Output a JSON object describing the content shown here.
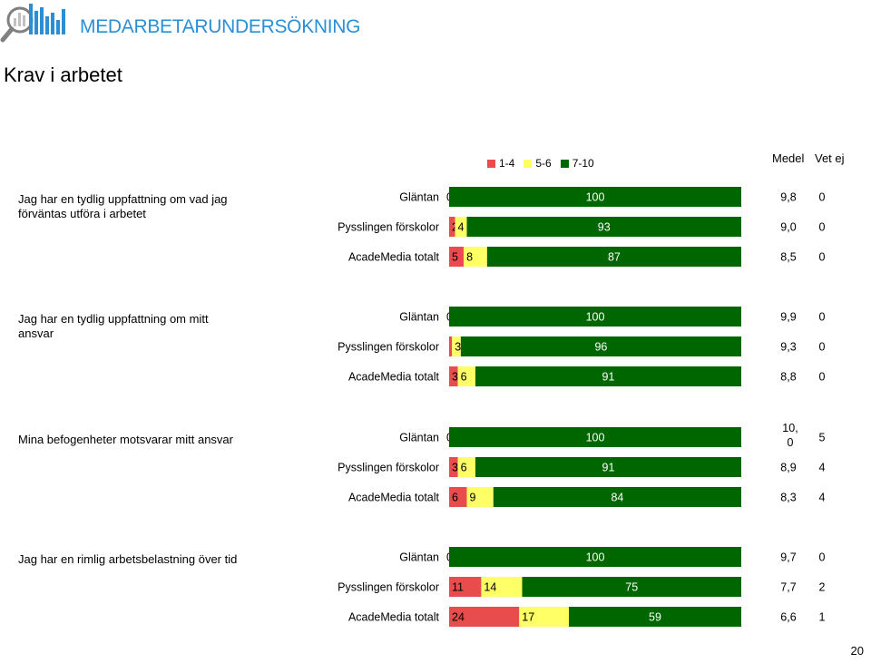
{
  "header": {
    "brand": "MEDARBETARUNDERSÖKNING",
    "title": "Krav i arbetet",
    "page_number": "20"
  },
  "colors": {
    "low": "#e84c4c",
    "mid": "#ffff66",
    "high": "#006600",
    "brand": "#2b8fd6",
    "logo_gray": "#808080"
  },
  "chart_data": {
    "type": "bar",
    "stacked": true,
    "orientation": "horizontal",
    "legend": {
      "position": "top-right",
      "items": [
        "1-4",
        "5-6",
        "7-10"
      ]
    },
    "columns": {
      "mean": "Medel",
      "dont_know": "Vet ej"
    },
    "groups": [
      {
        "question": "Jag har en tydlig uppfattning om vad jag förväntas utföra i arbetet",
        "rows": [
          {
            "label": "Gläntan",
            "values": [
              0,
              0,
              100
            ],
            "labels": [
              "0",
              "",
              "100"
            ],
            "mean": "9,8",
            "dont_know": "0"
          },
          {
            "label": "Pysslingen förskolor",
            "values": [
              2,
              4,
              93
            ],
            "labels": [
              "2",
              "4",
              "93"
            ],
            "mean": "9,0",
            "dont_know": "0"
          },
          {
            "label": "AcadeMedia totalt",
            "values": [
              5,
              8,
              87
            ],
            "labels": [
              "5",
              "8",
              "87"
            ],
            "mean": "8,5",
            "dont_know": "0"
          }
        ]
      },
      {
        "question": "Jag har en tydlig uppfattning om mitt ansvar",
        "rows": [
          {
            "label": "Gläntan",
            "values": [
              0,
              0,
              100
            ],
            "labels": [
              "0",
              "",
              "100"
            ],
            "mean": "9,9",
            "dont_know": "0"
          },
          {
            "label": "Pysslingen förskolor",
            "values": [
              1,
              3,
              96
            ],
            "labels": [
              "1",
              "3",
              "96"
            ],
            "mean": "9,3",
            "dont_know": "0"
          },
          {
            "label": "AcadeMedia totalt",
            "values": [
              3,
              6,
              91
            ],
            "labels": [
              "3",
              "6",
              "91"
            ],
            "mean": "8,8",
            "dont_know": "0"
          }
        ]
      },
      {
        "question": "Mina befogenheter motsvarar mitt ansvar",
        "rows": [
          {
            "label": "Gläntan",
            "values": [
              0,
              0,
              100
            ],
            "labels": [
              "0",
              "",
              "100"
            ],
            "mean": "10,0",
            "dont_know": "5"
          },
          {
            "label": "Pysslingen förskolor",
            "values": [
              3,
              6,
              91
            ],
            "labels": [
              "3",
              "6",
              "91"
            ],
            "mean": "8,9",
            "dont_know": "4"
          },
          {
            "label": "AcadeMedia totalt",
            "values": [
              6,
              9,
              84
            ],
            "labels": [
              "6",
              "9",
              "84"
            ],
            "mean": "8,3",
            "dont_know": "4"
          }
        ]
      },
      {
        "question": "Jag har en rimlig arbetsbelastning över tid",
        "rows": [
          {
            "label": "Gläntan",
            "values": [
              0,
              0,
              100
            ],
            "labels": [
              "0",
              "",
              "100"
            ],
            "mean": "9,7",
            "dont_know": "0"
          },
          {
            "label": "Pysslingen förskolor",
            "values": [
              11,
              14,
              75
            ],
            "labels": [
              "11",
              "14",
              "75"
            ],
            "mean": "7,7",
            "dont_know": "2"
          },
          {
            "label": "AcadeMedia totalt",
            "values": [
              24,
              17,
              59
            ],
            "labels": [
              "24",
              "17",
              "59"
            ],
            "mean": "6,6",
            "dont_know": "1"
          }
        ]
      }
    ]
  }
}
